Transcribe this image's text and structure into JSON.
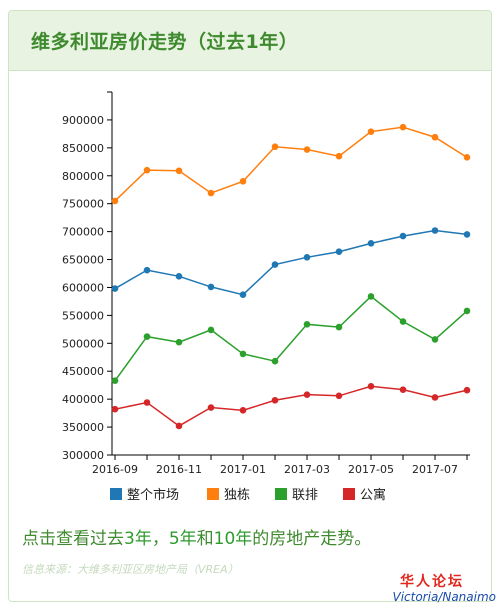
{
  "card": {
    "title": "维多利亚房价走势（过去1年）"
  },
  "cta": {
    "prefix": "点击查看过去",
    "link1": "3年",
    "sep1": "，",
    "link2": "5年",
    "mid": "和",
    "link3": "10年",
    "suffix": "的房地产走势。"
  },
  "source": "信息来源：大维多利亚区房地产局（VREA）",
  "watermark": {
    "line1": "华人论坛",
    "line2": "Victoria/Nanaimo"
  },
  "colors": {
    "accent": "#3f8a2f",
    "header_bg": "#e8f4e1"
  },
  "chart_data": {
    "type": "line",
    "x": [
      "2016-09",
      "2016-10",
      "2016-11",
      "2016-12",
      "2017-01",
      "2017-02",
      "2017-03",
      "2017-04",
      "2017-05",
      "2017-06",
      "2017-07",
      "2017-08"
    ],
    "xtick_labels": [
      "2016-09",
      "2016-11",
      "2017-01",
      "2017-03",
      "2017-05",
      "2017-07"
    ],
    "ylim": [
      300000,
      950000
    ],
    "yticks": [
      300000,
      350000,
      400000,
      450000,
      500000,
      550000,
      600000,
      650000,
      700000,
      750000,
      800000,
      850000,
      900000
    ],
    "grid": false,
    "legend_position": "bottom",
    "series": [
      {
        "name": "整个市场",
        "color": "#1f77b4",
        "values": [
          598000,
          631000,
          620000,
          601000,
          587000,
          641000,
          654000,
          664000,
          679000,
          692000,
          702000,
          695000
        ]
      },
      {
        "name": "独栋",
        "color": "#ff7f0e",
        "values": [
          755000,
          810000,
          809000,
          769000,
          790000,
          852000,
          847000,
          835000,
          879000,
          887000,
          869000,
          833000
        ]
      },
      {
        "name": "联排",
        "color": "#2ca02c",
        "values": [
          433000,
          512000,
          502000,
          524000,
          481000,
          468000,
          534000,
          529000,
          584000,
          539000,
          507000,
          558000
        ]
      },
      {
        "name": "公寓",
        "color": "#d62728",
        "values": [
          382000,
          394000,
          352000,
          385000,
          380000,
          398000,
          408000,
          406000,
          423000,
          417000,
          403000,
          416000
        ]
      }
    ]
  }
}
